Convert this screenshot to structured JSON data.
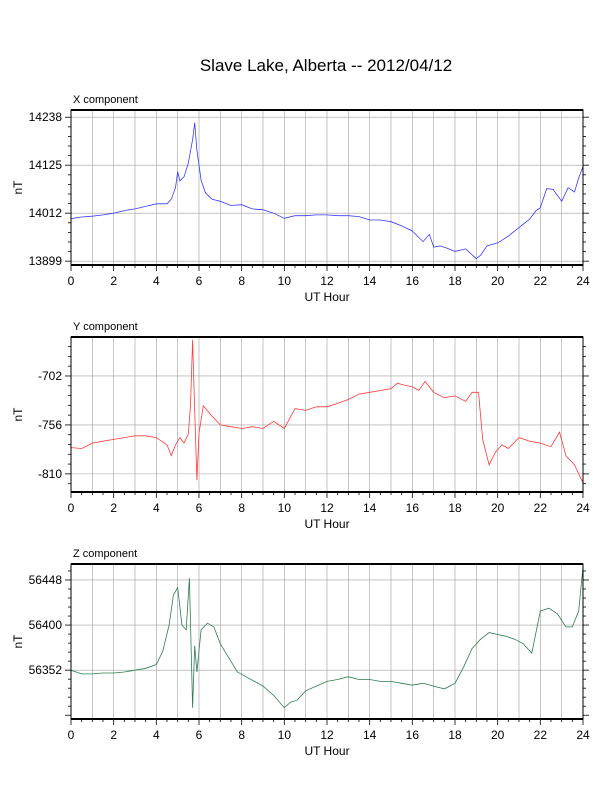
{
  "page": {
    "title": "Slave Lake, Alberta -- 2012/04/12"
  },
  "chart_data": [
    {
      "type": "line",
      "component_label": "X component",
      "xlabel": "UT Hour",
      "ylabel": "nT",
      "xlim": [
        0,
        24
      ],
      "ylim": [
        13890,
        14255
      ],
      "xticks": [
        "0",
        "2",
        "4",
        "6",
        "8",
        "10",
        "12",
        "14",
        "16",
        "18",
        "20",
        "22",
        "24"
      ],
      "yticks": [
        "13899",
        "14012",
        "14125",
        "14238"
      ],
      "yticks_values": [
        13899,
        14012,
        14125,
        14238
      ],
      "grid": true,
      "color": "#3a3aff",
      "series": [
        {
          "x": [
            0,
            0.5,
            1,
            1.5,
            2,
            2.5,
            3,
            3.5,
            4,
            4.5,
            4.7,
            4.9,
            5.0,
            5.1,
            5.3,
            5.5,
            5.7,
            5.8,
            5.9,
            6.1,
            6.3,
            6.6,
            7,
            7.5,
            8,
            8.5,
            9,
            9.5,
            10,
            10.5,
            11,
            11.5,
            12,
            12.5,
            13,
            13.5,
            14,
            14.5,
            15,
            15.5,
            16,
            16.5,
            16.8,
            17,
            17.3,
            17.6,
            18,
            18.5,
            19,
            19.2,
            19.5,
            20,
            20.5,
            21,
            21.5,
            21.8,
            22,
            22.3,
            22.6,
            23,
            23.3,
            23.6,
            23.8,
            24
          ],
          "y": [
            13999,
            14003,
            14005,
            14008,
            14012,
            14018,
            14022,
            14028,
            14034,
            14034,
            14045,
            14072,
            14110,
            14088,
            14098,
            14130,
            14185,
            14225,
            14160,
            14090,
            14060,
            14045,
            14040,
            14030,
            14032,
            14022,
            14020,
            14012,
            14000,
            14006,
            14006,
            14008,
            14008,
            14006,
            14006,
            14004,
            13996,
            13996,
            13992,
            13982,
            13970,
            13945,
            13962,
            13932,
            13935,
            13930,
            13922,
            13928,
            13905,
            13913,
            13935,
            13942,
            13958,
            13978,
            13998,
            14018,
            14025,
            14070,
            14068,
            14040,
            14072,
            14062,
            14095,
            14122
          ]
        }
      ]
    },
    {
      "type": "line",
      "component_label": "Y component",
      "xlabel": "UT Hour",
      "ylabel": "nT",
      "xlim": [
        0,
        24
      ],
      "ylim": [
        -830,
        -659
      ],
      "xticks": [
        "0",
        "2",
        "4",
        "6",
        "8",
        "10",
        "12",
        "14",
        "16",
        "18",
        "20",
        "22",
        "24"
      ],
      "yticks": [
        "-702",
        "-756",
        "-810"
      ],
      "yticks_values": [
        -702,
        -756,
        -810
      ],
      "grid": true,
      "color": "#ff3a3a",
      "series": [
        {
          "x": [
            0,
            0.5,
            1,
            1.5,
            2,
            2.5,
            3,
            3.5,
            4,
            4.5,
            4.7,
            4.9,
            5.1,
            5.3,
            5.5,
            5.6,
            5.7,
            5.8,
            5.9,
            6.0,
            6.2,
            6.6,
            7,
            7.5,
            8,
            8.5,
            9,
            9.5,
            10,
            10.5,
            11,
            11.5,
            12,
            12.5,
            13,
            13.5,
            14,
            14.5,
            15,
            15.3,
            15.6,
            16,
            16.3,
            16.6,
            17,
            17.5,
            18,
            18.5,
            18.8,
            19.1,
            19.3,
            19.6,
            19.9,
            20.2,
            20.5,
            21,
            21.5,
            22,
            22.5,
            22.9,
            23.2,
            23.6,
            24
          ],
          "y": [
            -781,
            -782,
            -776,
            -774,
            -772,
            -770,
            -768,
            -768,
            -770,
            -778,
            -790,
            -778,
            -770,
            -776,
            -766,
            -735,
            -662,
            -740,
            -817,
            -765,
            -735,
            -746,
            -756,
            -758,
            -760,
            -758,
            -760,
            -752,
            -760,
            -738,
            -740,
            -736,
            -736,
            -732,
            -728,
            -722,
            -720,
            -718,
            -716,
            -710,
            -712,
            -714,
            -718,
            -708,
            -720,
            -726,
            -724,
            -730,
            -720,
            -720,
            -772,
            -800,
            -786,
            -778,
            -782,
            -770,
            -774,
            -776,
            -780,
            -764,
            -790,
            -800,
            -820
          ]
        }
      ]
    },
    {
      "type": "line",
      "component_label": "Z component",
      "xlabel": "UT Hour",
      "ylabel": "nT",
      "xlim": [
        0,
        24
      ],
      "ylim": [
        56300,
        56465
      ],
      "xticks": [
        "0",
        "2",
        "4",
        "6",
        "8",
        "10",
        "12",
        "14",
        "16",
        "18",
        "20",
        "22",
        "24"
      ],
      "yticks": [
        "56352",
        "56400",
        "56448"
      ],
      "yticks_values": [
        56352,
        56400,
        56448
      ],
      "grid": true,
      "color": "#2e7d4f",
      "series": [
        {
          "x": [
            0,
            0.5,
            1,
            1.5,
            2,
            2.5,
            3,
            3.5,
            4,
            4.3,
            4.6,
            4.8,
            5.0,
            5.2,
            5.4,
            5.55,
            5.7,
            5.8,
            5.9,
            6.1,
            6.4,
            6.7,
            7.0,
            7.4,
            7.8,
            8.2,
            8.6,
            9,
            9.5,
            10,
            10.3,
            10.6,
            11,
            11.5,
            12,
            12.5,
            13,
            13.5,
            14,
            14.5,
            15,
            15.5,
            16,
            16.5,
            17,
            17.5,
            18,
            18.4,
            18.8,
            19.2,
            19.6,
            20,
            20.4,
            20.8,
            21.2,
            21.6,
            22,
            22.4,
            22.8,
            23.2,
            23.5,
            23.8,
            24
          ],
          "y": [
            56352,
            56348,
            56348,
            56349,
            56349,
            56350,
            56352,
            56354,
            56358,
            56372,
            56400,
            56432,
            56440,
            56400,
            56395,
            56450,
            56312,
            56378,
            56350,
            56395,
            56402,
            56398,
            56380,
            56365,
            56350,
            56345,
            56340,
            56335,
            56325,
            56312,
            56318,
            56320,
            56330,
            56335,
            56340,
            56342,
            56345,
            56342,
            56342,
            56340,
            56340,
            56338,
            56336,
            56338,
            56335,
            56332,
            56338,
            56355,
            56375,
            56385,
            56392,
            56390,
            56388,
            56385,
            56380,
            56370,
            56415,
            56418,
            56412,
            56398,
            56398,
            56415,
            56462
          ]
        }
      ]
    }
  ]
}
